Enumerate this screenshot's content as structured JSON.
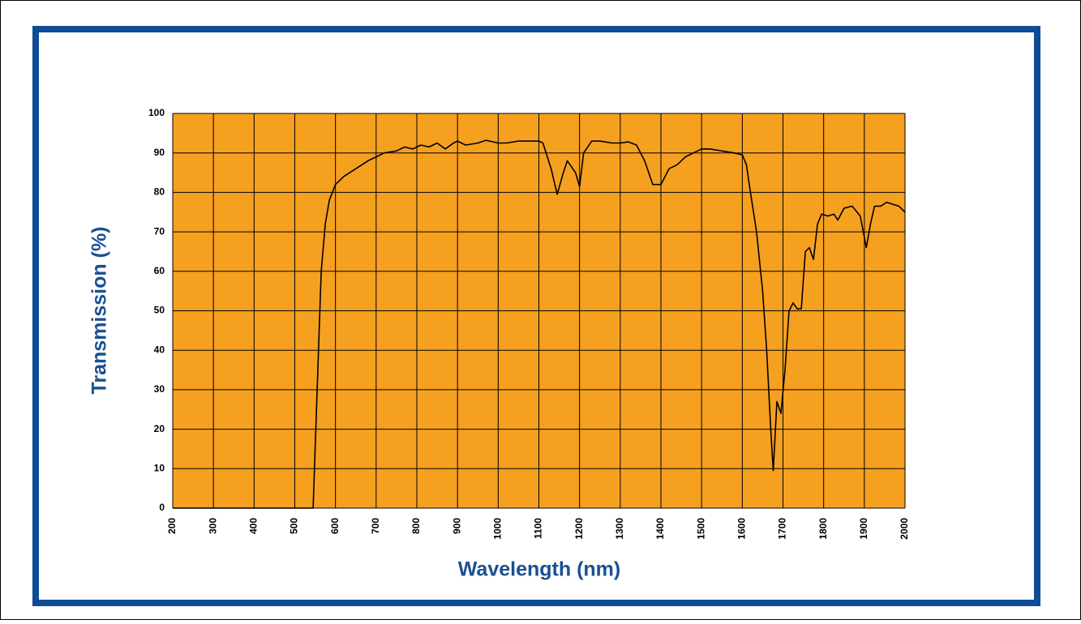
{
  "chart_data": {
    "type": "line",
    "x_label": "Wavelength (nm)",
    "y_label": "Transmission (%)",
    "x": [
      200,
      300,
      400,
      500,
      540,
      545,
      555,
      565,
      575,
      585,
      600,
      620,
      650,
      680,
      700,
      720,
      750,
      770,
      790,
      810,
      830,
      850,
      870,
      890,
      900,
      920,
      950,
      970,
      1000,
      1020,
      1050,
      1100,
      1110,
      1130,
      1145,
      1160,
      1170,
      1190,
      1200,
      1210,
      1230,
      1250,
      1280,
      1300,
      1320,
      1340,
      1360,
      1380,
      1400,
      1420,
      1440,
      1460,
      1480,
      1500,
      1520,
      1550,
      1580,
      1600,
      1610,
      1620,
      1635,
      1650,
      1660,
      1670,
      1676,
      1685,
      1695,
      1705,
      1715,
      1725,
      1735,
      1745,
      1755,
      1765,
      1775,
      1785,
      1795,
      1810,
      1825,
      1835,
      1850,
      1870,
      1890,
      1905,
      1915,
      1925,
      1940,
      1955,
      1970,
      1985,
      2000
    ],
    "values": [
      0,
      0,
      0,
      0,
      0,
      0,
      30,
      60,
      72,
      78,
      82,
      84,
      86,
      88,
      89,
      90,
      90.5,
      91.5,
      91,
      92,
      91.5,
      92.5,
      91,
      92.5,
      93,
      92,
      92.5,
      93.2,
      92.5,
      92.5,
      93,
      93,
      92.5,
      86,
      79.5,
      85,
      88,
      85,
      81.5,
      90,
      93,
      93,
      92.5,
      92.5,
      92.8,
      92,
      88,
      82,
      82,
      86,
      87,
      89,
      90,
      91,
      91,
      90.5,
      90,
      89.5,
      87,
      80,
      70,
      55,
      40,
      20,
      9.5,
      27,
      24,
      35,
      50,
      52,
      50.5,
      50.5,
      65,
      66,
      63,
      72,
      74.5,
      74,
      74.5,
      73,
      76,
      76.5,
      74,
      66,
      72,
      76.5,
      76.5,
      77.5,
      77,
      76.5,
      75
    ],
    "color": "#000000",
    "plot_color": "#f6a020",
    "xlim": [
      200,
      2000
    ],
    "xticks": [
      200,
      300,
      400,
      500,
      600,
      700,
      800,
      900,
      1000,
      1100,
      1200,
      1300,
      1400,
      1500,
      1600,
      1700,
      1800,
      1900,
      2000
    ],
    "ylim": [
      0,
      100
    ],
    "yticks": [
      0,
      10,
      20,
      30,
      40,
      50,
      60,
      70,
      80,
      90,
      100
    ],
    "grid": true
  }
}
